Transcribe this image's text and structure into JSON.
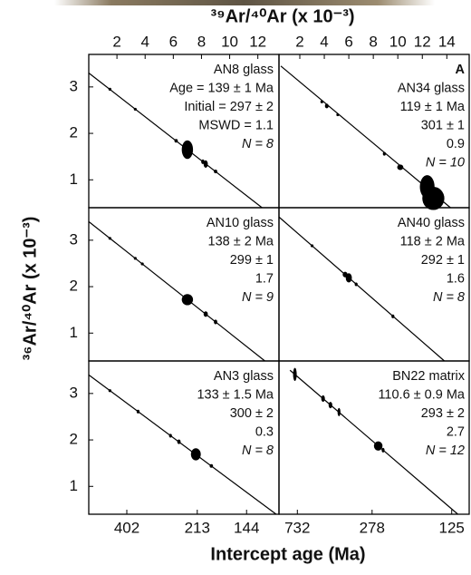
{
  "chart_data": {
    "type": "scatter",
    "color": "#000000",
    "xlabel": "³⁹Ar/⁴⁰Ar (x 10⁻³)",
    "ylabel": "³⁶Ar/⁴⁰Ar (x 10⁻³)",
    "x2label": "Intercept age (Ma)",
    "panels": [
      {
        "annotation": [
          "AN8 glass",
          "Age = 139 ± 1 Ma",
          "Initial = 297 ± 2",
          "MSWD = 1.1",
          "N = 8"
        ],
        "xlim": [
          0,
          13.5
        ],
        "ylim": [
          0.4,
          3.7
        ],
        "xticks": [
          2,
          4,
          6,
          8,
          10,
          12
        ],
        "yticks": [
          1,
          2,
          3
        ],
        "fit_x": [
          0,
          12.3
        ],
        "fit_y": [
          3.3,
          0.4
        ],
        "x": [
          1.5,
          3.3,
          6.2,
          7.0,
          8.1,
          8.3,
          9.0
        ],
        "y": [
          2.95,
          2.52,
          1.84,
          1.65,
          1.39,
          1.34,
          1.18
        ],
        "xerr": [
          0.1,
          0.1,
          0.12,
          0.4,
          0.12,
          0.15,
          0.12
        ],
        "yerr": [
          0.03,
          0.03,
          0.04,
          0.2,
          0.05,
          0.08,
          0.04
        ]
      },
      {
        "panel_label": "A",
        "annotation": [
          "AN34 glass",
          "119 ± 1 Ma",
          "301 ± 1",
          "0.9",
          "N = 10"
        ],
        "xlim": [
          0.3,
          15.9
        ],
        "ylim": [
          0.4,
          3.7
        ],
        "xticks": [
          2,
          4,
          6,
          8,
          10,
          12,
          14
        ],
        "fit_x": [
          0.45,
          14.3
        ],
        "fit_y": [
          3.45,
          0.4
        ],
        "x": [
          3.8,
          4.2,
          5.1,
          8.9,
          10.2,
          12.4,
          12.9
        ],
        "y": [
          2.68,
          2.59,
          2.4,
          1.56,
          1.27,
          0.85,
          0.6
        ],
        "xerr": [
          0.1,
          0.15,
          0.1,
          0.12,
          0.25,
          0.6,
          0.9
        ],
        "yerr": [
          0.03,
          0.05,
          0.03,
          0.04,
          0.06,
          0.25,
          0.25
        ]
      },
      {
        "annotation": [
          "AN10 glass",
          "138 ± 2 Ma",
          "299 ± 1",
          "1.7",
          "N = 9"
        ],
        "xlim": [
          0,
          13.5
        ],
        "ylim": [
          0.4,
          3.7
        ],
        "yticks": [
          1,
          2,
          3
        ],
        "fit_x": [
          0,
          12.5
        ],
        "fit_y": [
          3.4,
          0.4
        ],
        "x": [
          1.5,
          3.3,
          3.8,
          7.0,
          8.3,
          9.0
        ],
        "y": [
          3.04,
          2.61,
          2.49,
          1.72,
          1.41,
          1.24
        ],
        "xerr": [
          0.08,
          0.1,
          0.1,
          0.4,
          0.15,
          0.12
        ],
        "yerr": [
          0.03,
          0.03,
          0.03,
          0.12,
          0.06,
          0.05
        ]
      },
      {
        "annotation": [
          "AN40 glass",
          "118 ± 2 Ma",
          "292 ± 1",
          "1.6",
          "N = 8"
        ],
        "xlim": [
          0.3,
          15.9
        ],
        "ylim": [
          0.4,
          3.7
        ],
        "fit_x": [
          0.3,
          13.8
        ],
        "fit_y": [
          3.5,
          0.4
        ],
        "x": [
          3.0,
          5.7,
          6.0,
          6.6,
          9.6
        ],
        "y": [
          2.88,
          2.26,
          2.19,
          2.05,
          1.36
        ],
        "xerr": [
          0.1,
          0.2,
          0.25,
          0.12,
          0.12
        ],
        "yerr": [
          0.03,
          0.06,
          0.1,
          0.04,
          0.04
        ]
      },
      {
        "annotation": [
          "AN3 glass",
          "133 ± 1.5 Ma",
          "300 ± 2",
          "0.3",
          "N = 8"
        ],
        "xlim": [
          0,
          13.5
        ],
        "ylim": [
          0.4,
          3.7
        ],
        "yticks": [
          1,
          2,
          3
        ],
        "x2ticks": [
          {
            "value": 2.7,
            "label": "402"
          },
          {
            "value": 7.7,
            "label": "213"
          },
          {
            "value": 11.2,
            "label": "144"
          }
        ],
        "fit_x": [
          0,
          13.3
        ],
        "fit_y": [
          3.4,
          0.4
        ],
        "x": [
          1.5,
          3.5,
          5.8,
          6.4,
          7.6,
          8.7
        ],
        "y": [
          3.06,
          2.61,
          2.09,
          1.96,
          1.69,
          1.44
        ],
        "xerr": [
          0.08,
          0.1,
          0.1,
          0.12,
          0.35,
          0.12
        ],
        "yerr": [
          0.03,
          0.04,
          0.04,
          0.05,
          0.13,
          0.04
        ]
      },
      {
        "annotation": [
          "BN22 matrix",
          "110.6 ± 0.9 Ma",
          "293 ± 2",
          "2.7",
          "N = 12"
        ],
        "xlim": [
          0.3,
          15.9
        ],
        "ylim": [
          0.4,
          3.7
        ],
        "x2ticks": [
          {
            "value": 1.8,
            "label": "732"
          },
          {
            "value": 7.9,
            "label": "278"
          },
          {
            "value": 14.4,
            "label": "125"
          }
        ],
        "fit_x": [
          1.2,
          14.9
        ],
        "fit_y": [
          3.5,
          0.4
        ],
        "x": [
          1.6,
          3.9,
          4.5,
          5.2,
          8.4,
          8.8
        ],
        "y": [
          3.41,
          2.89,
          2.75,
          2.6,
          1.87,
          1.78
        ],
        "xerr": [
          0.15,
          0.15,
          0.15,
          0.12,
          0.35,
          0.12
        ],
        "yerr": [
          0.14,
          0.07,
          0.07,
          0.09,
          0.1,
          0.05
        ]
      }
    ]
  }
}
